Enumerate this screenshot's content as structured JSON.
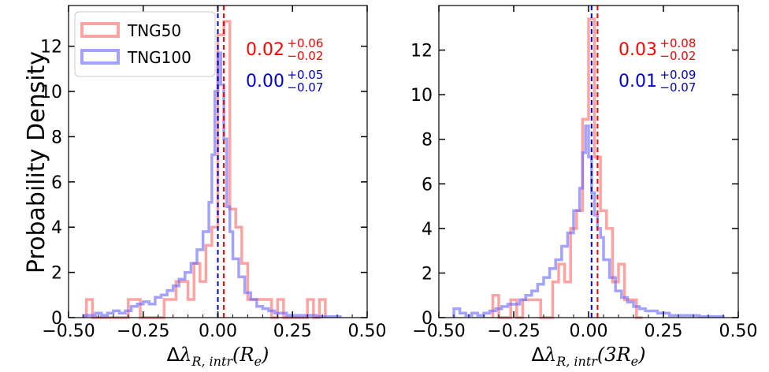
{
  "ylabel": "Probability Density",
  "colors": {
    "tng50": "#ff6666",
    "tng100": "#6666ff",
    "tng50_median": "#ff0000",
    "tng100_median": "#0000cc"
  },
  "legend": {
    "items": [
      {
        "label": "TNG50",
        "color": "#ff6666"
      },
      {
        "label": "TNG100",
        "color": "#6666ff"
      }
    ],
    "placement": "upper-left"
  },
  "chart_data": [
    {
      "type": "histogram",
      "xlabel_math": {
        "delta": "Δ",
        "lambda": "λ",
        "sub": "R, intr",
        "arg": "(R",
        "arg_sub": "e",
        "arg_close": ")"
      },
      "xlim": [
        -0.5,
        0.5
      ],
      "ylim": [
        0,
        13.8
      ],
      "xticks": [
        -0.5,
        -0.25,
        0.0,
        0.25,
        0.5
      ],
      "xtick_labels": [
        "−0.50",
        "−0.25",
        "0.00",
        "0.25",
        "0.50"
      ],
      "yticks": [
        0,
        2,
        4,
        6,
        8,
        10,
        12
      ],
      "ytick_labels": [
        "0",
        "2",
        "4",
        "6",
        "8",
        "10",
        "12"
      ],
      "series": [
        {
          "name": "TNG50",
          "color": "#ff6666",
          "bin_edges": [
            -0.44,
            -0.42,
            -0.4,
            -0.38,
            -0.36,
            -0.34,
            -0.32,
            -0.3,
            -0.28,
            -0.26,
            -0.24,
            -0.22,
            -0.2,
            -0.18,
            -0.16,
            -0.14,
            -0.12,
            -0.1,
            -0.08,
            -0.06,
            -0.04,
            -0.02,
            0.0,
            0.02,
            0.04,
            0.06,
            0.08,
            0.1,
            0.12,
            0.14,
            0.16,
            0.18,
            0.2,
            0.22,
            0.24,
            0.26,
            0.28,
            0.3,
            0.32,
            0.34,
            0.36
          ],
          "counts": [
            0.8,
            0,
            0,
            0,
            0,
            0,
            0,
            0.8,
            0.8,
            0,
            0,
            0,
            0,
            0.8,
            0.8,
            1.6,
            1.6,
            0.8,
            2.4,
            1.6,
            3.2,
            4.0,
            12.5,
            13.1,
            4.8,
            4.0,
            2.4,
            0.8,
            0.8,
            0.8,
            0.8,
            0,
            0.8,
            0,
            0,
            0,
            0,
            0.8,
            0,
            0.8
          ]
        },
        {
          "name": "TNG100",
          "color": "#6666ff",
          "bin_edges": [
            -0.45,
            -0.43,
            -0.41,
            -0.39,
            -0.37,
            -0.35,
            -0.33,
            -0.31,
            -0.29,
            -0.27,
            -0.25,
            -0.23,
            -0.21,
            -0.19,
            -0.17,
            -0.15,
            -0.13,
            -0.11,
            -0.09,
            -0.07,
            -0.05,
            -0.03,
            -0.02,
            -0.01,
            0.0,
            0.01,
            0.02,
            0.03,
            0.04,
            0.05,
            0.07,
            0.09,
            0.11,
            0.13,
            0.15,
            0.17,
            0.19,
            0.21,
            0.23,
            0.25,
            0.27,
            0.29,
            0.31,
            0.33,
            0.35,
            0.37,
            0.39,
            0.41
          ],
          "counts": [
            0.1,
            0.1,
            0.2,
            0.1,
            0.2,
            0.3,
            0.2,
            0.3,
            0.5,
            0.6,
            0.7,
            0.6,
            0.9,
            1.0,
            1.2,
            1.4,
            1.7,
            2.0,
            2.4,
            3.0,
            3.8,
            5.1,
            7.2,
            10.0,
            11.7,
            10.3,
            7.9,
            4.9,
            3.8,
            2.6,
            1.8,
            1.1,
            0.8,
            0.5,
            0.4,
            0.3,
            0.2,
            0.2,
            0.1,
            0.1,
            0.1,
            0.1,
            0.1,
            0.05,
            0.05,
            0.05,
            0.05
          ]
        }
      ],
      "medians": [
        {
          "series": "TNG50",
          "x": 0.02,
          "color": "#ff0000"
        },
        {
          "series": "TNG100",
          "x": 0.0,
          "color": "#0000cc"
        }
      ],
      "annotations": [
        {
          "value": "0.02",
          "sup": "+0.06",
          "sub": "−0.02",
          "color": "#ff0000"
        },
        {
          "value": "0.00",
          "sup": "+0.05",
          "sub": "−0.07",
          "color": "#0000cc"
        }
      ]
    },
    {
      "type": "histogram",
      "xlabel_math": {
        "delta": "Δ",
        "lambda": "λ",
        "sub": "R, intr",
        "arg": "(3R",
        "arg_sub": "e",
        "arg_close": ")"
      },
      "xlim": [
        -0.5,
        0.5
      ],
      "ylim": [
        0,
        14.0
      ],
      "xticks": [
        -0.5,
        -0.25,
        0.0,
        0.25,
        0.5
      ],
      "xtick_labels": [
        "−0.50",
        "−0.25",
        "0.00",
        "0.25",
        "0.50"
      ],
      "yticks": [
        0,
        2,
        4,
        6,
        8,
        10,
        12
      ],
      "ytick_labels": [
        "0",
        "2",
        "4",
        "6",
        "8",
        "10",
        "12"
      ],
      "series": [
        {
          "name": "TNG50",
          "color": "#ff6666",
          "bin_edges": [
            -0.32,
            -0.3,
            -0.28,
            -0.26,
            -0.24,
            -0.22,
            -0.2,
            -0.18,
            -0.16,
            -0.14,
            -0.12,
            -0.1,
            -0.08,
            -0.06,
            -0.04,
            -0.02,
            0.0,
            0.02,
            0.04,
            0.06,
            0.08,
            0.1,
            0.12,
            0.14,
            0.16,
            0.18
          ],
          "counts": [
            1.0,
            0,
            0,
            0.8,
            0,
            0.8,
            0.8,
            0.8,
            0,
            0,
            1.6,
            2.4,
            1.6,
            4.0,
            4.8,
            8.9,
            13.4,
            7.2,
            4.8,
            4.0,
            1.6,
            2.4,
            0.8,
            0.8,
            0
          ]
        },
        {
          "name": "TNG100",
          "color": "#6666ff",
          "bin_edges": [
            -0.45,
            -0.43,
            -0.41,
            -0.39,
            -0.37,
            -0.35,
            -0.33,
            -0.31,
            -0.29,
            -0.27,
            -0.25,
            -0.23,
            -0.21,
            -0.19,
            -0.17,
            -0.15,
            -0.13,
            -0.11,
            -0.09,
            -0.07,
            -0.05,
            -0.03,
            -0.02,
            -0.01,
            0.0,
            0.01,
            0.02,
            0.03,
            0.04,
            0.05,
            0.07,
            0.09,
            0.11,
            0.13,
            0.15,
            0.17,
            0.19,
            0.21,
            0.23,
            0.25,
            0.27,
            0.29,
            0.31,
            0.33,
            0.35,
            0.37,
            0.39,
            0.41,
            0.43,
            0.45
          ],
          "counts": [
            0.4,
            0.2,
            0.1,
            0.2,
            0.1,
            0.2,
            0.3,
            0.4,
            0.5,
            0.6,
            0.6,
            0.8,
            1.0,
            1.2,
            1.5,
            1.8,
            2.2,
            2.6,
            3.2,
            3.8,
            4.8,
            5.8,
            7.4,
            8.6,
            7.2,
            5.6,
            4.6,
            4.0,
            3.6,
            2.6,
            1.8,
            1.2,
            0.9,
            0.7,
            0.5,
            0.4,
            0.3,
            0.3,
            0.2,
            0.2,
            0.1,
            0.1,
            0.1,
            0.1,
            0.1,
            0.05,
            0.05,
            0.05,
            0.05
          ]
        }
      ],
      "medians": [
        {
          "series": "TNG50",
          "x": 0.03,
          "color": "#ff0000"
        },
        {
          "series": "TNG100",
          "x": 0.01,
          "color": "#0000cc"
        }
      ],
      "annotations": [
        {
          "value": "0.03",
          "sup": "+0.08",
          "sub": "−0.02",
          "color": "#ff0000"
        },
        {
          "value": "0.01",
          "sup": "+0.09",
          "sub": "−0.07",
          "color": "#0000cc"
        }
      ]
    }
  ]
}
